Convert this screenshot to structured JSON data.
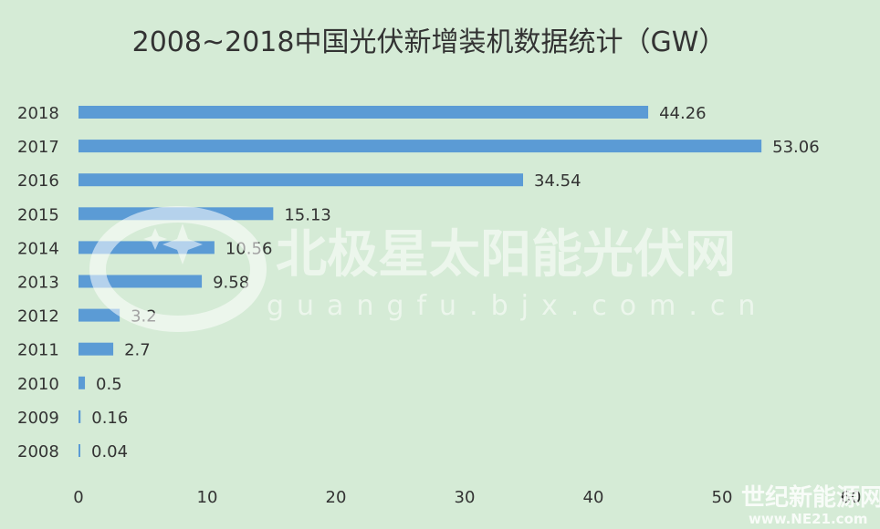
{
  "chart_data": {
    "type": "bar",
    "orientation": "horizontal",
    "title": "2008~2018中国光伏新增装机数据统计（GW）",
    "categories": [
      "2018",
      "2017",
      "2016",
      "2015",
      "2014",
      "2013",
      "2012",
      "2011",
      "2010",
      "2009",
      "2008"
    ],
    "values": [
      44.26,
      53.06,
      34.54,
      15.13,
      10.56,
      9.58,
      3.2,
      2.7,
      0.5,
      0.16,
      0.04
    ],
    "value_labels": [
      "44.26",
      "53.06",
      "34.54",
      "15.13",
      "10.56",
      "9.58",
      "3.2",
      "2.7",
      "0.5",
      "0.16",
      "0.04"
    ],
    "xlim": [
      0,
      60
    ],
    "xticks": [
      "0",
      "10",
      "20",
      "30",
      "40",
      "50",
      "60"
    ],
    "grid": false,
    "bar_color": "#5b9bd5"
  },
  "watermark": {
    "main": "北极星太阳能光伏网",
    "url": "guangfu.bjx.com.cn",
    "corner_main": "世纪新能源网",
    "corner_url": "www.NE21.com"
  },
  "colors": {
    "background": "#d5ebd6",
    "text": "#333333",
    "bar": "#5b9bd5"
  }
}
